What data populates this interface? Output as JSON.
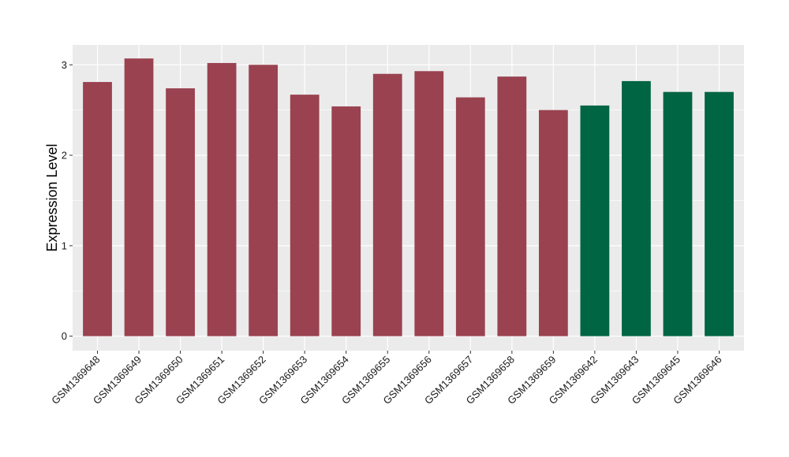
{
  "chart_data": {
    "type": "bar",
    "ylabel": "Expression Level",
    "xlabel": "",
    "ylim": [
      -0.16,
      3.22
    ],
    "yticks": [
      0,
      1,
      2,
      3
    ],
    "grid": true,
    "categories": [
      "GSM1369648",
      "GSM1369649",
      "GSM1369650",
      "GSM1369651",
      "GSM1369652",
      "GSM1369653",
      "GSM1369654",
      "GSM1369655",
      "GSM1369656",
      "GSM1369657",
      "GSM1369658",
      "GSM1369659",
      "GSM1369642",
      "GSM1369643",
      "GSM1369645",
      "GSM1369646"
    ],
    "values": [
      2.81,
      3.07,
      2.74,
      3.02,
      3.0,
      2.67,
      2.54,
      2.9,
      2.93,
      2.64,
      2.87,
      2.5,
      2.55,
      2.82,
      2.7,
      2.7
    ],
    "groups": [
      "a",
      "a",
      "a",
      "a",
      "a",
      "a",
      "a",
      "a",
      "a",
      "a",
      "a",
      "a",
      "b",
      "b",
      "b",
      "b"
    ],
    "colors": {
      "a": "#9A4250",
      "b": "#006543",
      "panel": "#EBEBEB",
      "grid": "#FFFFFF"
    }
  }
}
